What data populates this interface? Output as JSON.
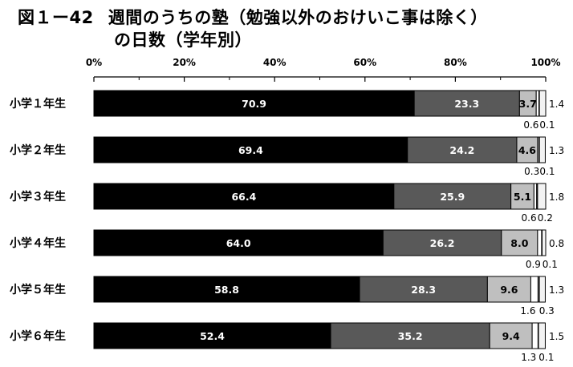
{
  "title": {
    "figure_number": "図１ー42",
    "line1": "週間のうちの塾（勉強以外のおけいこ事は除く）",
    "line2": "の日数（学年別）"
  },
  "colors": {
    "seg1": "#000000",
    "seg2": "#595959",
    "seg3": "#bfbfbf",
    "seg4": "#ffffff",
    "seg5": "#8c8c8c",
    "seg6": "#f2f2f2"
  },
  "chart_data": {
    "type": "bar",
    "orientation": "horizontal",
    "stacked": true,
    "xlim": [
      0,
      100
    ],
    "x_ticks": [
      "0%",
      "20%",
      "40%",
      "60%",
      "80%",
      "100%"
    ],
    "categories": [
      "小学１年生",
      "小学２年生",
      "小学３年生",
      "小学４年生",
      "小学５年生",
      "小学６年生"
    ],
    "series": [
      {
        "values": [
          70.9,
          69.4,
          66.4,
          64.0,
          58.8,
          52.4
        ],
        "labels": [
          "70.9",
          "69.4",
          "66.4",
          "64.0",
          "58.8",
          "52.4"
        ]
      },
      {
        "values": [
          23.3,
          24.2,
          25.9,
          26.2,
          28.3,
          35.2
        ],
        "labels": [
          "23.3",
          "24.2",
          "25.9",
          "26.2",
          "28.3",
          "35.2"
        ]
      },
      {
        "values": [
          3.7,
          4.6,
          5.1,
          8.0,
          9.6,
          9.4
        ],
        "labels": [
          "3.7",
          "4.6",
          "5.1",
          "8.0",
          "9.6",
          "9.4"
        ]
      },
      {
        "values": [
          0.6,
          0.3,
          0.6,
          0.9,
          1.6,
          1.3
        ],
        "labels": [
          "0.6",
          "0.3",
          "0.6",
          "0.9",
          "1.6",
          "1.3"
        ]
      },
      {
        "values": [
          0.1,
          0.1,
          0.2,
          0.1,
          0.3,
          0.1
        ],
        "labels": [
          "0.1",
          "0.1",
          "0.2",
          "0.1",
          "0.3",
          "0.1"
        ]
      },
      {
        "values": [
          1.4,
          1.3,
          1.8,
          0.8,
          1.3,
          1.5
        ],
        "labels": [
          "1.4",
          "1.3",
          "1.8",
          "0.8",
          "1.3",
          "1.5"
        ]
      }
    ]
  }
}
